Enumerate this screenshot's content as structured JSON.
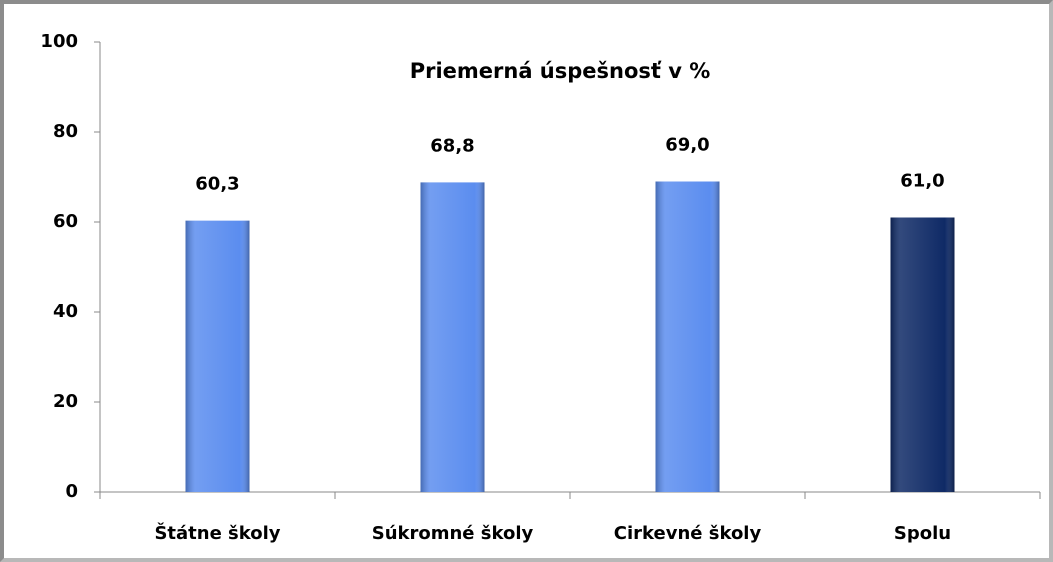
{
  "chart_data": {
    "type": "bar",
    "title": "Priemerná úspešnosť v  %",
    "categories": [
      "Štátne školy",
      "Súkromné školy",
      "Cirkevné školy",
      "Spolu"
    ],
    "values": [
      60.3,
      68.8,
      69.0,
      61.0
    ],
    "value_labels": [
      "60,3",
      "68,8",
      "69,0",
      "61,0"
    ],
    "colors": [
      "#5b8def",
      "#5b8def",
      "#5b8def",
      "#0f2a66"
    ],
    "ylim": [
      0,
      100
    ],
    "yticks": [
      0,
      20,
      40,
      60,
      80,
      100
    ],
    "grid": false
  }
}
